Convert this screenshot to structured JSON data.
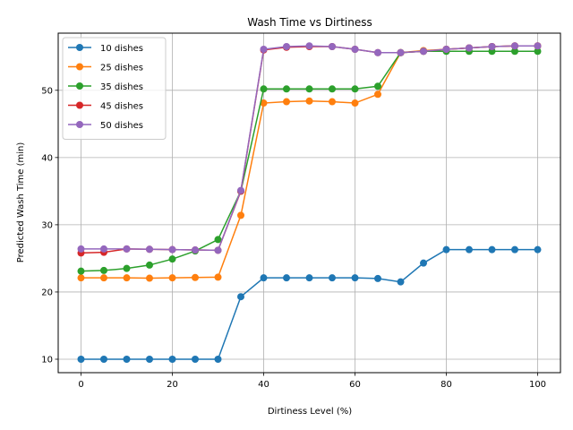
{
  "chart_data": {
    "type": "line",
    "title": "Wash Time vs Dirtiness",
    "xlabel": "Dirtiness Level (%)",
    "ylabel": "Predicted Wash Time (min)",
    "xlim": [
      -5,
      105
    ],
    "ylim": [
      8,
      58.5
    ],
    "xticks": [
      0,
      20,
      40,
      60,
      80,
      100
    ],
    "yticks": [
      10,
      20,
      30,
      40,
      50
    ],
    "grid": true,
    "legend_position": "top-left",
    "x": [
      0,
      5,
      10,
      15,
      20,
      25,
      30,
      35,
      40,
      45,
      50,
      55,
      60,
      65,
      70,
      75,
      80,
      85,
      90,
      95,
      100
    ],
    "series": [
      {
        "name": "10 dishes",
        "color": "#1f77b4",
        "values": [
          10,
          10,
          10,
          10,
          10,
          10,
          10,
          19.3,
          22.1,
          22.1,
          22.1,
          22.1,
          22.1,
          22.0,
          21.5,
          24.3,
          26.3,
          26.3,
          26.3,
          26.3,
          26.3
        ]
      },
      {
        "name": "25 dishes",
        "color": "#ff7f0e",
        "values": [
          22.1,
          22.1,
          22.1,
          22.05,
          22.1,
          22.15,
          22.2,
          31.4,
          48.1,
          48.3,
          48.4,
          48.3,
          48.1,
          49.4,
          55.6,
          55.9,
          56.1,
          56.3,
          56.5,
          56.6,
          56.6
        ]
      },
      {
        "name": "35 dishes",
        "color": "#2ca02c",
        "values": [
          23.1,
          23.2,
          23.5,
          24.0,
          24.9,
          26.1,
          27.8,
          35.0,
          50.2,
          50.2,
          50.2,
          50.2,
          50.2,
          50.6,
          55.6,
          55.8,
          55.8,
          55.8,
          55.8,
          55.8,
          55.8
        ]
      },
      {
        "name": "45 dishes",
        "color": "#d62728",
        "values": [
          25.8,
          25.9,
          26.4,
          26.35,
          26.3,
          26.25,
          26.2,
          35.0,
          56.0,
          56.4,
          56.5,
          56.5,
          56.1,
          55.6,
          55.6,
          55.8,
          56.1,
          56.3,
          56.5,
          56.6,
          56.6
        ]
      },
      {
        "name": "50 dishes",
        "color": "#9467bd",
        "values": [
          26.4,
          26.4,
          26.4,
          26.35,
          26.3,
          26.25,
          26.2,
          35.1,
          56.1,
          56.5,
          56.6,
          56.5,
          56.1,
          55.6,
          55.6,
          55.8,
          56.1,
          56.3,
          56.5,
          56.6,
          56.6
        ]
      }
    ]
  }
}
